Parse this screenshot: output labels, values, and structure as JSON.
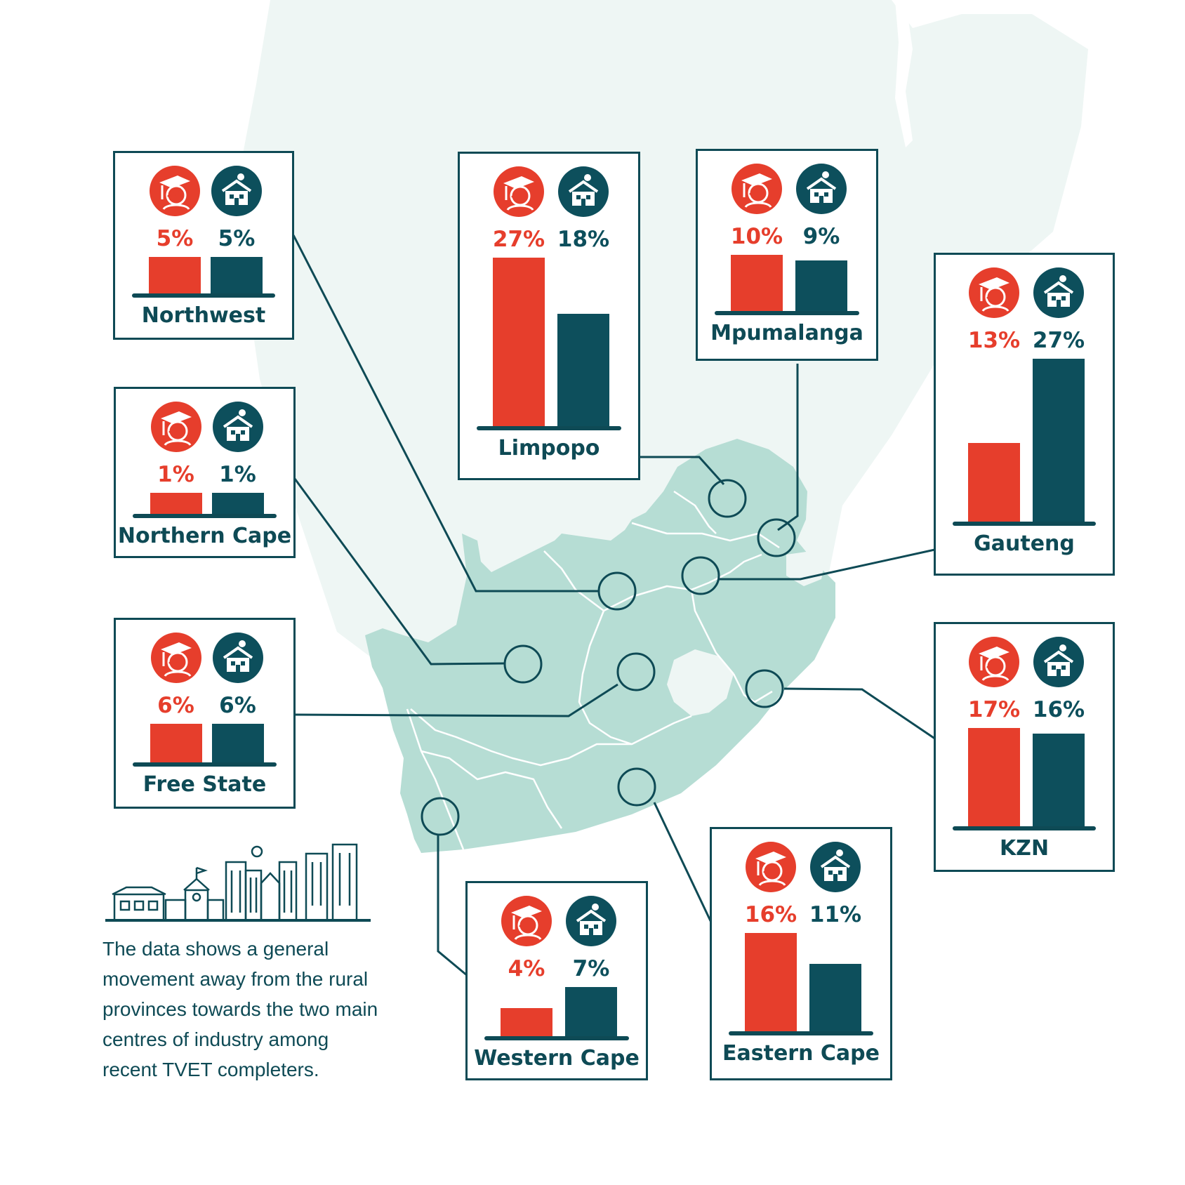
{
  "colors": {
    "graduate": "#e63e2c",
    "household": "#0d4f5c",
    "outline": "#0e4a55",
    "land_light": "#eef6f4",
    "south_africa": "#b6ddd4"
  },
  "icons": {
    "graduate": "graduate-icon",
    "household": "house-icon"
  },
  "provinces": [
    {
      "name": "Northwest",
      "graduate": 5,
      "household": 5
    },
    {
      "name": "Limpopo",
      "graduate": 27,
      "household": 18
    },
    {
      "name": "Mpumalanga",
      "graduate": 10,
      "household": 9
    },
    {
      "name": "Gauteng",
      "graduate": 13,
      "household": 27
    },
    {
      "name": "Northern Cape",
      "graduate": 1,
      "household": 1
    },
    {
      "name": "Free State",
      "graduate": 6,
      "household": 6
    },
    {
      "name": "KZN",
      "graduate": 17,
      "household": 16
    },
    {
      "name": "Western Cape",
      "graduate": 4,
      "household": 7
    },
    {
      "name": "Eastern Cape",
      "graduate": 16,
      "household": 11
    }
  ],
  "caption": "The data shows a general movement away from the rural provinces towards the two main centres of industry among recent TVET completers."
}
